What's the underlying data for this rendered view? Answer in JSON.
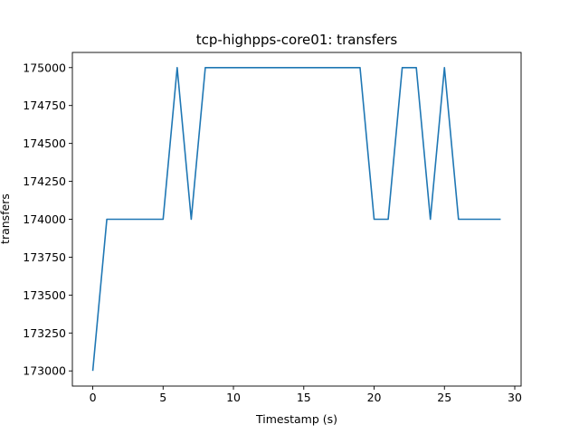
{
  "chart_data": {
    "type": "line",
    "title": "tcp-highpps-core01: transfers",
    "xlabel": "Timestamp (s)",
    "ylabel": "transfers",
    "xlim": [
      -1.45,
      30.45
    ],
    "ylim": [
      172900,
      175100
    ],
    "xticks": [
      0,
      5,
      10,
      15,
      20,
      25,
      30
    ],
    "yticks": [
      173000,
      173250,
      173500,
      173750,
      174000,
      174250,
      174500,
      174750,
      175000
    ],
    "grid": false,
    "line_color": "#1f77b4",
    "series": [
      {
        "x": [
          0,
          1,
          2,
          3,
          4,
          5,
          6,
          7,
          8,
          9,
          10,
          11,
          12,
          13,
          14,
          15,
          16,
          17,
          18,
          19,
          20,
          21,
          22,
          23,
          24,
          25,
          26,
          27,
          28,
          29
        ],
        "values": [
          173000,
          174000,
          174000,
          174000,
          174000,
          174000,
          175000,
          174000,
          175000,
          175000,
          175000,
          175000,
          175000,
          175000,
          175000,
          175000,
          175000,
          175000,
          175000,
          175000,
          174000,
          174000,
          175000,
          175000,
          174000,
          175000,
          174000,
          174000,
          174000,
          174000
        ]
      }
    ]
  }
}
